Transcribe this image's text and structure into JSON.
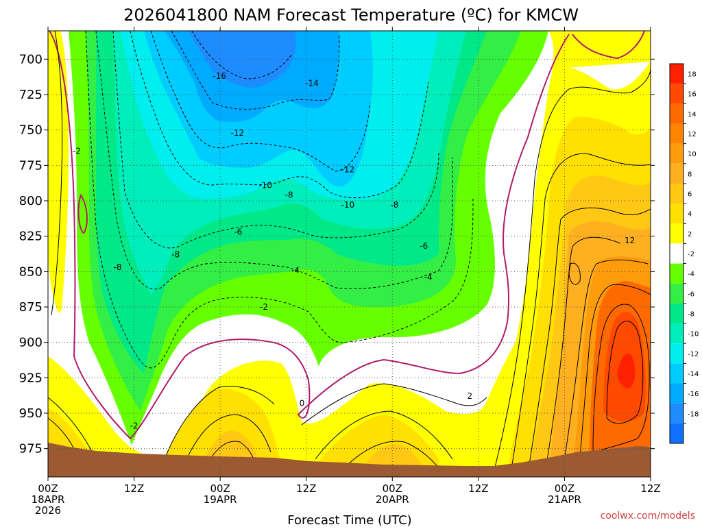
{
  "title": "2026041800 NAM Forecast Temperature (ºC) for KMCW",
  "credit": "coolwx.com/models",
  "chart_data": {
    "type": "heatmap",
    "title": "2026041800 NAM Forecast Temperature (ºC) for KMCW",
    "xlabel": "Forecast Time (UTC)",
    "ylabel": "",
    "x_range_hours": [
      0,
      84
    ],
    "y_range_hpa": [
      680,
      995
    ],
    "y_ticks": [
      700,
      725,
      750,
      775,
      800,
      825,
      850,
      875,
      900,
      925,
      950,
      975
    ],
    "x_ticks": [
      {
        "hour": 0,
        "lines": [
          "00Z",
          "18APR",
          "2026"
        ]
      },
      {
        "hour": 12,
        "lines": [
          "12Z"
        ]
      },
      {
        "hour": 24,
        "lines": [
          "00Z",
          "19APR"
        ]
      },
      {
        "hour": 36,
        "lines": [
          "12Z"
        ]
      },
      {
        "hour": 48,
        "lines": [
          "00Z",
          "20APR"
        ]
      },
      {
        "hour": 60,
        "lines": [
          "12Z"
        ]
      },
      {
        "hour": 72,
        "lines": [
          "00Z",
          "21APR"
        ]
      },
      {
        "hour": 84,
        "lines": [
          "12Z"
        ]
      }
    ],
    "grid": true,
    "colorbar": {
      "placement": "right",
      "labels": [
        "18",
        "16",
        "14",
        "12",
        "10",
        "8",
        "6",
        "4",
        "2",
        "-2",
        "-4",
        "-6",
        "-8",
        "-10",
        "-12",
        "-14",
        "-16",
        "-18"
      ],
      "colors": [
        "#ff2000",
        "#ff4a00",
        "#ff6a00",
        "#ff8400",
        "#ff9c0c",
        "#ffb020",
        "#ffc814",
        "#ffe000",
        "#ffff00",
        "#ffffff",
        "#66ff00",
        "#33ee44",
        "#00e888",
        "#00eebb",
        "#00eeee",
        "#00ccff",
        "#00aaff",
        "#1e8cff",
        "#1070ff"
      ]
    },
    "contour_labels": [
      {
        "text": "-16",
        "hour": 23.9,
        "hpa": 712
      },
      {
        "text": "-14",
        "hour": 36.8,
        "hpa": 717
      },
      {
        "text": "-12",
        "hour": 26.4,
        "hpa": 752
      },
      {
        "text": "-12",
        "hour": 41.8,
        "hpa": 778
      },
      {
        "text": "-10",
        "hour": 30.3,
        "hpa": 789
      },
      {
        "text": "-10",
        "hour": 41.8,
        "hpa": 803
      },
      {
        "text": "-8",
        "hour": 33.6,
        "hpa": 796
      },
      {
        "text": "-8",
        "hour": 48.3,
        "hpa": 803
      },
      {
        "text": "-8",
        "hour": 9.7,
        "hpa": 847
      },
      {
        "text": "-8",
        "hour": 17.8,
        "hpa": 838
      },
      {
        "text": "-6",
        "hour": 26.5,
        "hpa": 822
      },
      {
        "text": "-6",
        "hour": 52.4,
        "hpa": 832
      },
      {
        "text": "-4",
        "hour": 34.5,
        "hpa": 849
      },
      {
        "text": "-4",
        "hour": 53.0,
        "hpa": 854
      },
      {
        "text": "-2",
        "hour": 4.0,
        "hpa": 765
      },
      {
        "text": "-2",
        "hour": 30.1,
        "hpa": 875
      },
      {
        "text": "-2",
        "hour": 12.0,
        "hpa": 959
      },
      {
        "text": "0",
        "hour": 35.4,
        "hpa": 943
      },
      {
        "text": "2",
        "hour": 58.8,
        "hpa": 938
      },
      {
        "text": "12",
        "hour": 81.1,
        "hpa": 828
      }
    ]
  }
}
